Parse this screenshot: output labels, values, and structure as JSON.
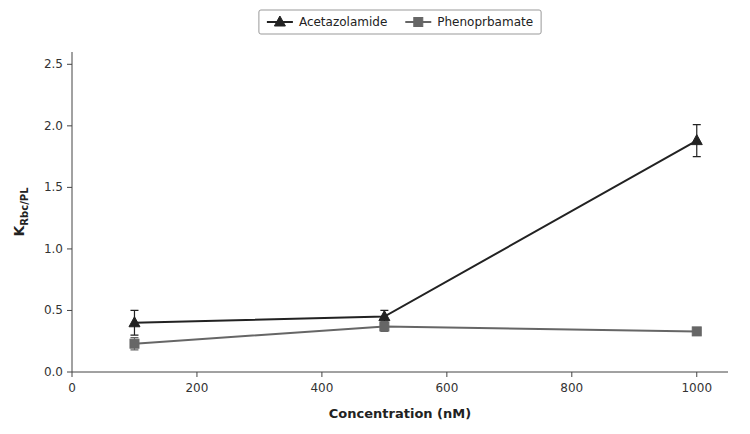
{
  "chart_data": {
    "type": "line",
    "x": [
      100,
      500,
      1000
    ],
    "series": [
      {
        "name": "Acetazolamide",
        "color": "#222222",
        "marker": "triangle",
        "line_style": "solid",
        "values": [
          0.4,
          0.45,
          1.88
        ],
        "errors": [
          0.1,
          0.05,
          0.13
        ]
      },
      {
        "name": "Phenoprbamate",
        "color": "#666666",
        "marker": "square",
        "line_style": "solid",
        "values": [
          0.23,
          0.37,
          0.33
        ],
        "errors": [
          0.05,
          0.04,
          0.03
        ]
      }
    ],
    "xlabel": "Concentration (nM)",
    "ylabel": "KRbc/PL",
    "xlim": [
      0,
      1050
    ],
    "ylim": [
      0.0,
      2.6
    ],
    "xticks": [
      0,
      200,
      400,
      600,
      800,
      1000
    ],
    "yticks": [
      {
        "value": 0,
        "label": "0.0"
      },
      0.5,
      {
        "value": 1,
        "label": "1.0"
      },
      1.5,
      {
        "value": 2,
        "label": "2.0"
      },
      2.5
    ],
    "grid": false,
    "legend": "upper center"
  }
}
